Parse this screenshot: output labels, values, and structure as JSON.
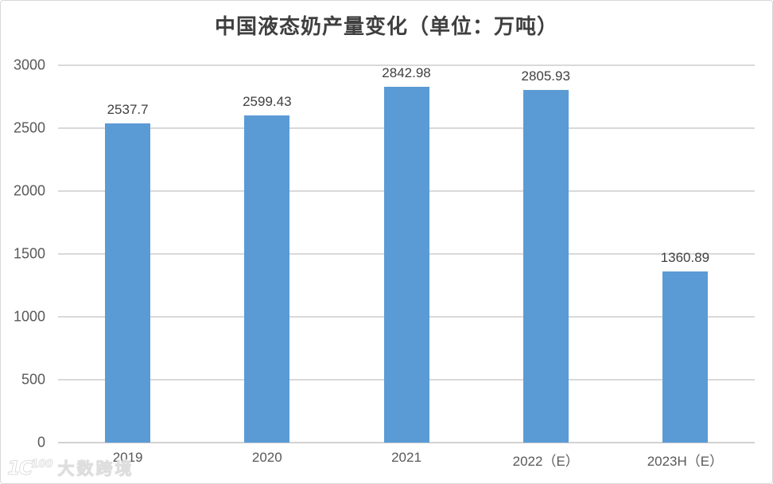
{
  "chart_data": {
    "type": "bar",
    "title": "中国液态奶产量变化（单位：万吨）",
    "categories": [
      "2019",
      "2020",
      "2021",
      "2022（E）",
      "2023H（E）"
    ],
    "values": [
      2537.7,
      2599.43,
      2842.98,
      2805.93,
      1360.89
    ],
    "value_labels": [
      "2537.7",
      "2599.43",
      "2842.98",
      "2805.93",
      "1360.89"
    ],
    "xlabel": "",
    "ylabel": "",
    "ylim": [
      0,
      3000
    ],
    "yticks": [
      0,
      500,
      1000,
      1500,
      2000,
      2500,
      3000
    ],
    "grid": true,
    "legend_position": "none",
    "bar_color": "#5b9bd5",
    "gridline_color": "#d9d9d9",
    "value_label_color": "#404040",
    "axis_tick_color": "#595959"
  },
  "watermark": {
    "logo": "100",
    "text": "大数跨境"
  }
}
